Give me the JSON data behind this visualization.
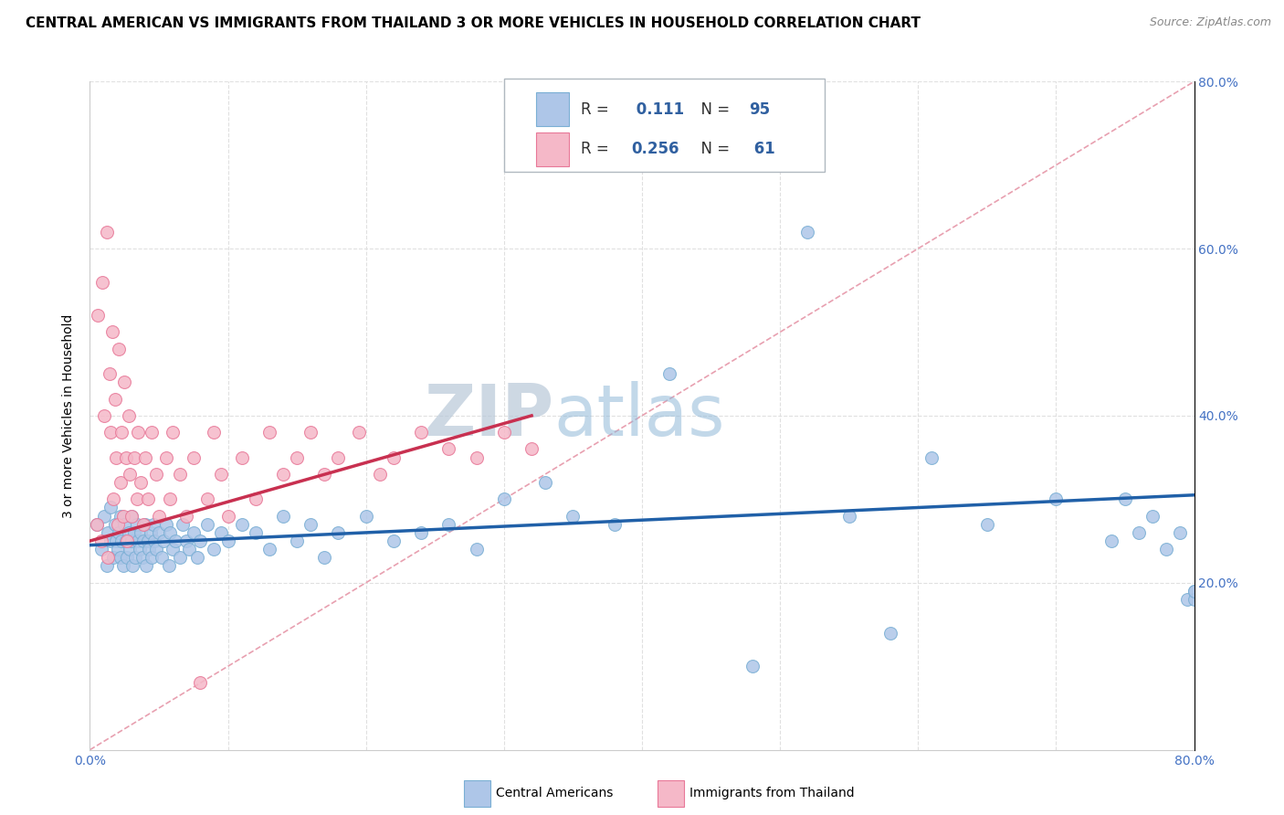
{
  "title": "CENTRAL AMERICAN VS IMMIGRANTS FROM THAILAND 3 OR MORE VEHICLES IN HOUSEHOLD CORRELATION CHART",
  "source": "Source: ZipAtlas.com",
  "ylabel": "3 or more Vehicles in Household",
  "xlim": [
    0.0,
    0.8
  ],
  "ylim": [
    0.0,
    0.8
  ],
  "series1_color": "#aec6e8",
  "series1_edge": "#7aafd4",
  "series2_color": "#f5b8c8",
  "series2_edge": "#e87898",
  "trend1_color": "#2060a8",
  "trend2_color": "#c83050",
  "ref_line_color": "#e8b0b8",
  "legend_R1": "0.111",
  "legend_N1": "95",
  "legend_R2": "0.256",
  "legend_N2": "61",
  "legend_text_color": "#3060a0",
  "legend_label_color": "#303030",
  "watermark": "ZIPatlas",
  "watermark_color": "#ccd8e8",
  "blue_scatter_x": [
    0.005,
    0.008,
    0.01,
    0.012,
    0.013,
    0.015,
    0.015,
    0.017,
    0.018,
    0.019,
    0.02,
    0.021,
    0.022,
    0.022,
    0.023,
    0.024,
    0.025,
    0.026,
    0.027,
    0.028,
    0.029,
    0.03,
    0.03,
    0.031,
    0.032,
    0.033,
    0.034,
    0.035,
    0.036,
    0.037,
    0.038,
    0.039,
    0.04,
    0.041,
    0.042,
    0.043,
    0.044,
    0.045,
    0.046,
    0.047,
    0.048,
    0.05,
    0.052,
    0.053,
    0.055,
    0.057,
    0.058,
    0.06,
    0.062,
    0.065,
    0.067,
    0.07,
    0.072,
    0.075,
    0.078,
    0.08,
    0.085,
    0.09,
    0.095,
    0.1,
    0.11,
    0.12,
    0.13,
    0.14,
    0.15,
    0.16,
    0.17,
    0.18,
    0.2,
    0.22,
    0.24,
    0.26,
    0.28,
    0.3,
    0.33,
    0.35,
    0.38,
    0.42,
    0.48,
    0.52,
    0.55,
    0.58,
    0.61,
    0.65,
    0.7,
    0.74,
    0.75,
    0.76,
    0.77,
    0.78,
    0.79,
    0.795,
    0.8,
    0.8,
    0.8
  ],
  "blue_scatter_y": [
    0.27,
    0.24,
    0.28,
    0.22,
    0.26,
    0.25,
    0.29,
    0.23,
    0.27,
    0.25,
    0.24,
    0.26,
    0.23,
    0.28,
    0.25,
    0.22,
    0.27,
    0.25,
    0.23,
    0.26,
    0.24,
    0.25,
    0.28,
    0.22,
    0.26,
    0.23,
    0.27,
    0.25,
    0.24,
    0.26,
    0.23,
    0.25,
    0.27,
    0.22,
    0.25,
    0.24,
    0.26,
    0.23,
    0.27,
    0.25,
    0.24,
    0.26,
    0.23,
    0.25,
    0.27,
    0.22,
    0.26,
    0.24,
    0.25,
    0.23,
    0.27,
    0.25,
    0.24,
    0.26,
    0.23,
    0.25,
    0.27,
    0.24,
    0.26,
    0.25,
    0.27,
    0.26,
    0.24,
    0.28,
    0.25,
    0.27,
    0.23,
    0.26,
    0.28,
    0.25,
    0.26,
    0.27,
    0.24,
    0.3,
    0.32,
    0.28,
    0.27,
    0.45,
    0.1,
    0.62,
    0.28,
    0.14,
    0.35,
    0.27,
    0.3,
    0.25,
    0.3,
    0.26,
    0.28,
    0.24,
    0.26,
    0.18,
    0.19,
    0.18,
    0.19
  ],
  "pink_scatter_x": [
    0.005,
    0.006,
    0.008,
    0.009,
    0.01,
    0.012,
    0.013,
    0.014,
    0.015,
    0.016,
    0.017,
    0.018,
    0.019,
    0.02,
    0.021,
    0.022,
    0.023,
    0.024,
    0.025,
    0.026,
    0.027,
    0.028,
    0.029,
    0.03,
    0.032,
    0.034,
    0.035,
    0.037,
    0.039,
    0.04,
    0.042,
    0.045,
    0.048,
    0.05,
    0.055,
    0.058,
    0.06,
    0.065,
    0.07,
    0.075,
    0.08,
    0.085,
    0.09,
    0.095,
    0.1,
    0.11,
    0.12,
    0.13,
    0.14,
    0.15,
    0.16,
    0.17,
    0.18,
    0.195,
    0.21,
    0.22,
    0.24,
    0.26,
    0.28,
    0.3,
    0.32
  ],
  "pink_scatter_y": [
    0.27,
    0.52,
    0.25,
    0.56,
    0.4,
    0.62,
    0.23,
    0.45,
    0.38,
    0.5,
    0.3,
    0.42,
    0.35,
    0.27,
    0.48,
    0.32,
    0.38,
    0.28,
    0.44,
    0.35,
    0.25,
    0.4,
    0.33,
    0.28,
    0.35,
    0.3,
    0.38,
    0.32,
    0.27,
    0.35,
    0.3,
    0.38,
    0.33,
    0.28,
    0.35,
    0.3,
    0.38,
    0.33,
    0.28,
    0.35,
    0.08,
    0.3,
    0.38,
    0.33,
    0.28,
    0.35,
    0.3,
    0.38,
    0.33,
    0.35,
    0.38,
    0.33,
    0.35,
    0.38,
    0.33,
    0.35,
    0.38,
    0.36,
    0.35,
    0.38,
    0.36
  ],
  "title_fontsize": 11,
  "axis_fontsize": 10,
  "tick_fontsize": 10,
  "tick_color": "#4472c4"
}
